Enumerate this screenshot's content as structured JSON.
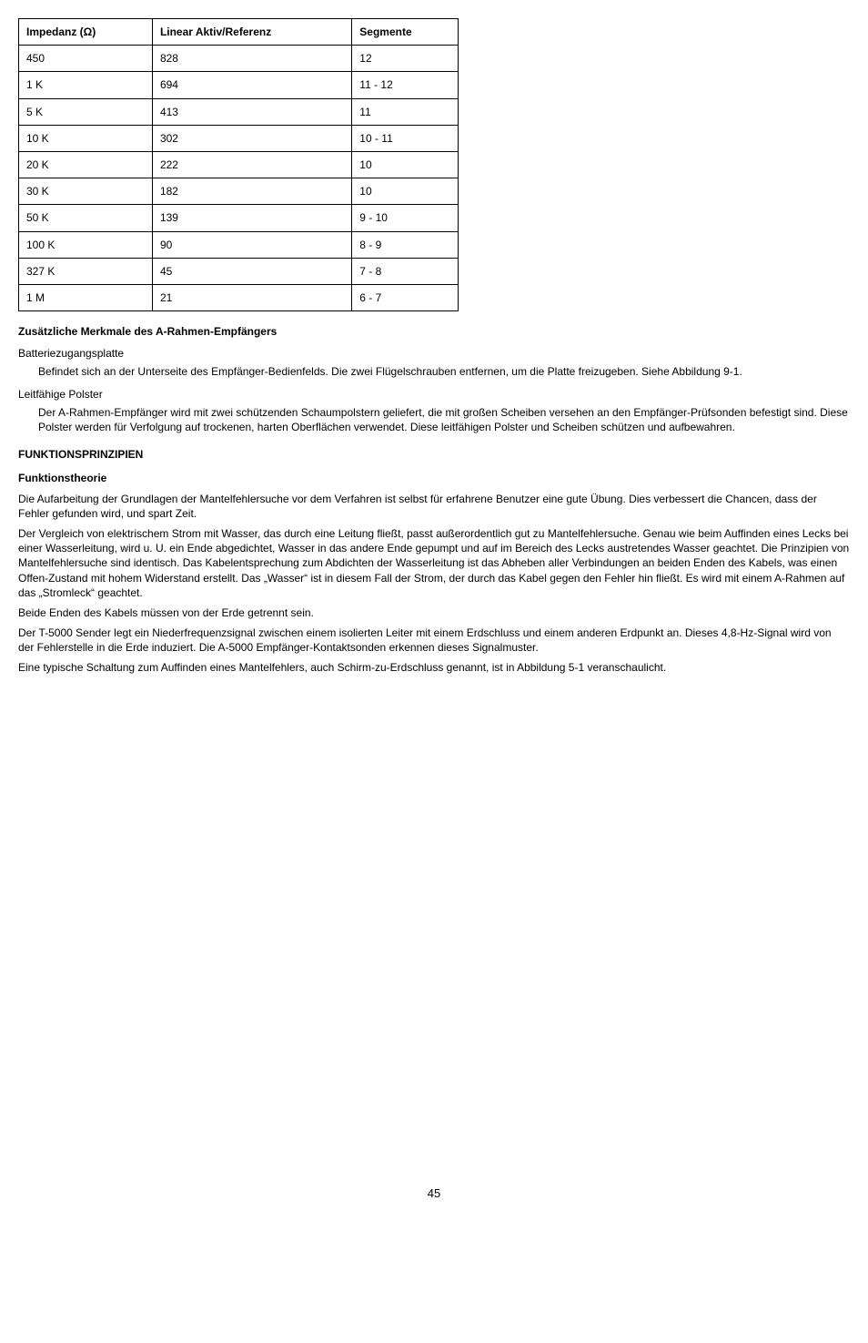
{
  "table": {
    "columns": [
      "Impedanz (Ω)",
      "Linear Aktiv/Referenz",
      "Segmente"
    ],
    "rows": [
      [
        "450",
        "828",
        "12"
      ],
      [
        "1 K",
        "694",
        "11 - 12"
      ],
      [
        "5 K",
        "413",
        "11"
      ],
      [
        "10 K",
        "302",
        "10 - 11"
      ],
      [
        "20 K",
        "222",
        "10"
      ],
      [
        "30 K",
        "182",
        "10"
      ],
      [
        "50 K",
        "139",
        "9 - 10"
      ],
      [
        "100 K",
        "90",
        "8 - 9"
      ],
      [
        "327 K",
        "45",
        "7 - 8"
      ],
      [
        "1 M",
        "21",
        "6 - 7"
      ]
    ]
  },
  "headings": {
    "zus": "Zusätzliche Merkmale des A-Rahmen-Empfängers",
    "batt": "Batteriezugangsplatte",
    "leit": "Leitfähige Polster",
    "funk": "FUNKTIONSPRINZIPIEN",
    "theorie": "Funktionstheorie"
  },
  "paras": {
    "batt_p": "Befindet sich an der Unterseite des Empfänger-Bedienfelds. Die zwei Flügelschrauben entfernen, um die Platte freizugeben. Siehe Abbildung 9-1.",
    "leit_p": "Der A-Rahmen-Empfänger wird mit zwei schützenden Schaumpolstern geliefert, die mit großen Scheiben versehen an den Empfänger-Prüfsonden befestigt sind. Diese Polster werden für Verfolgung auf trockenen, harten Oberflächen verwendet. Diese leitfähigen Polster und Scheiben schützen und aufbewahren.",
    "t1": "Die Aufarbeitung der Grundlagen der Mantelfehlersuche vor dem Verfahren ist selbst für erfahrene Benutzer eine gute Übung. Dies verbessert die Chancen, dass der Fehler gefunden wird, und spart Zeit.",
    "t2": "Der Vergleich von elektrischem Strom mit Wasser, das durch eine Leitung fließt, passt außerordentlich gut zu Mantelfehlersuche. Genau wie beim Auffinden eines Lecks bei einer Wasserleitung, wird u. U. ein Ende abgedichtet, Wasser in das andere Ende gepumpt und auf im Bereich des Lecks austretendes Wasser geachtet. Die Prinzipien von Mantelfehlersuche sind identisch. Das Kabelentsprechung zum Abdichten der Wasserleitung ist das Abheben aller Verbindungen an beiden Enden des Kabels, was einen Offen-Zustand mit hohem Widerstand erstellt. Das „Wasser“ ist in diesem Fall der Strom, der durch das Kabel gegen den Fehler hin fließt. Es wird mit einem A-Rahmen auf das „Stromleck“ geachtet.",
    "t3": "Beide Enden des Kabels müssen von der Erde getrennt sein.",
    "t4": "Der T-5000 Sender legt ein Niederfrequenzsignal zwischen einem isolierten Leiter mit einem Erdschluss und einem anderen Erdpunkt an. Dieses 4,8-Hz-Signal wird von der Fehlerstelle in die Erde induziert. Die A-5000 Empfänger-Kontaktsonden erkennen dieses Signalmuster.",
    "t5": "Eine typische Schaltung zum Auffinden eines Mantelfehlers, auch Schirm-zu-Erdschluss genannt, ist in Abbildung 5-1 veranschaulicht."
  },
  "pagenum": "45"
}
